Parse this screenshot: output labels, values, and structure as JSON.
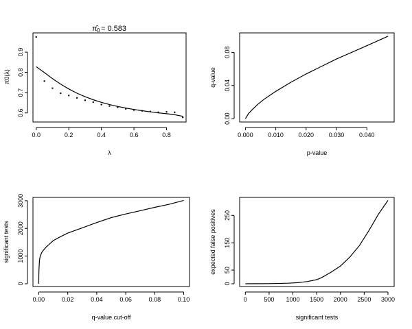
{
  "chart_data": [
    {
      "type": "scatter",
      "panel": "pi0-vs-lambda",
      "title_symbol": "π̂",
      "title_sub": "0",
      "title_value": "= 0.583",
      "xlabel": "λ",
      "ylabel": "π0(λ)",
      "xlim": [
        -0.02,
        0.92
      ],
      "ylim": [
        0.555,
        0.995
      ],
      "xticks": [
        0.0,
        0.2,
        0.4,
        0.6,
        0.8
      ],
      "xtick_labels": [
        "0.0",
        "0.2",
        "0.4",
        "0.6",
        "0.8"
      ],
      "yticks": [
        0.6,
        0.7,
        0.8,
        0.9
      ],
      "ytick_labels": [
        "0.6",
        "0.7",
        "0.8",
        "0.9"
      ],
      "points": {
        "x": [
          0.0,
          0.05,
          0.1,
          0.15,
          0.2,
          0.25,
          0.3,
          0.35,
          0.4,
          0.45,
          0.5,
          0.55,
          0.6,
          0.65,
          0.7,
          0.75,
          0.8,
          0.85,
          0.9
        ],
        "y": [
          0.975,
          0.757,
          0.722,
          0.697,
          0.686,
          0.674,
          0.662,
          0.653,
          0.641,
          0.634,
          0.628,
          0.62,
          0.614,
          0.61,
          0.607,
          0.603,
          0.605,
          0.603,
          0.578
        ]
      },
      "line": {
        "x": [
          0.0,
          0.05,
          0.1,
          0.15,
          0.2,
          0.25,
          0.3,
          0.35,
          0.4,
          0.45,
          0.5,
          0.55,
          0.6,
          0.65,
          0.7,
          0.75,
          0.8,
          0.85,
          0.9
        ],
        "y": [
          0.828,
          0.799,
          0.769,
          0.742,
          0.718,
          0.697,
          0.68,
          0.665,
          0.652,
          0.641,
          0.632,
          0.624,
          0.617,
          0.611,
          0.605,
          0.6,
          0.596,
          0.591,
          0.583
        ]
      }
    },
    {
      "type": "line",
      "panel": "qvalue-vs-pvalue",
      "xlabel": "p-value",
      "ylabel": "q-value",
      "xlim": [
        -0.0019,
        0.049
      ],
      "ylim": [
        -0.004,
        0.1035
      ],
      "xticks": [
        0.0,
        0.01,
        0.02,
        0.03,
        0.04
      ],
      "xtick_labels": [
        "0.000",
        "0.010",
        "0.020",
        "0.030",
        "0.040"
      ],
      "yticks": [
        0.0,
        0.04,
        0.08
      ],
      "ytick_labels": [
        "0.00",
        "0.04",
        "0.08"
      ],
      "x": [
        0.0,
        0.001,
        0.002,
        0.004,
        0.006,
        0.008,
        0.01,
        0.015,
        0.02,
        0.025,
        0.03,
        0.035,
        0.04,
        0.047
      ],
      "y": [
        0.0,
        0.006,
        0.01,
        0.017,
        0.023,
        0.028,
        0.033,
        0.044,
        0.054,
        0.063,
        0.072,
        0.08,
        0.088,
        0.0995
      ]
    },
    {
      "type": "line",
      "panel": "significant-tests-vs-qvalue-cutoff",
      "xlabel": "q-value cut-off",
      "ylabel": "significant tests",
      "xlim": [
        -0.004,
        0.104
      ],
      "ylim": [
        -100,
        3120
      ],
      "xticks": [
        0.0,
        0.02,
        0.04,
        0.06,
        0.08,
        0.1
      ],
      "xtick_labels": [
        "0.00",
        "0.02",
        "0.04",
        "0.06",
        "0.08",
        "0.10"
      ],
      "yticks": [
        0,
        1000,
        2000,
        3000
      ],
      "ytick_labels": [
        "0",
        "1000",
        "2000",
        "3000"
      ],
      "x": [
        0.0,
        0.0001,
        0.0005,
        0.001,
        0.002,
        0.003,
        0.005,
        0.0075,
        0.01,
        0.015,
        0.02,
        0.03,
        0.04,
        0.05,
        0.06,
        0.07,
        0.08,
        0.09,
        0.1
      ],
      "y": [
        0,
        500,
        850,
        1000,
        1120,
        1200,
        1320,
        1440,
        1560,
        1700,
        1830,
        2020,
        2210,
        2390,
        2520,
        2640,
        2760,
        2870,
        3010
      ]
    },
    {
      "type": "line",
      "panel": "expected-false-positives-vs-significant-tests",
      "xlabel": "significant tests",
      "ylabel": "expected false positives",
      "xlim": [
        -120,
        3130
      ],
      "ylim": [
        -10,
        316
      ],
      "xticks": [
        0,
        500,
        1000,
        1500,
        2000,
        2500,
        3000
      ],
      "xtick_labels": [
        "0",
        "500",
        "1000",
        "1500",
        "2000",
        "2500",
        "3000"
      ],
      "yticks": [
        0,
        50,
        150,
        250
      ],
      "ytick_labels": [
        "0",
        "50",
        "150",
        "250"
      ],
      "x": [
        0,
        500,
        900,
        1100,
        1300,
        1500,
        1600,
        1800,
        2000,
        2200,
        2400,
        2600,
        2800,
        3000
      ],
      "y": [
        0,
        0.5,
        2,
        4,
        8,
        15,
        22,
        42,
        65,
        98,
        140,
        195,
        255,
        305
      ]
    }
  ]
}
